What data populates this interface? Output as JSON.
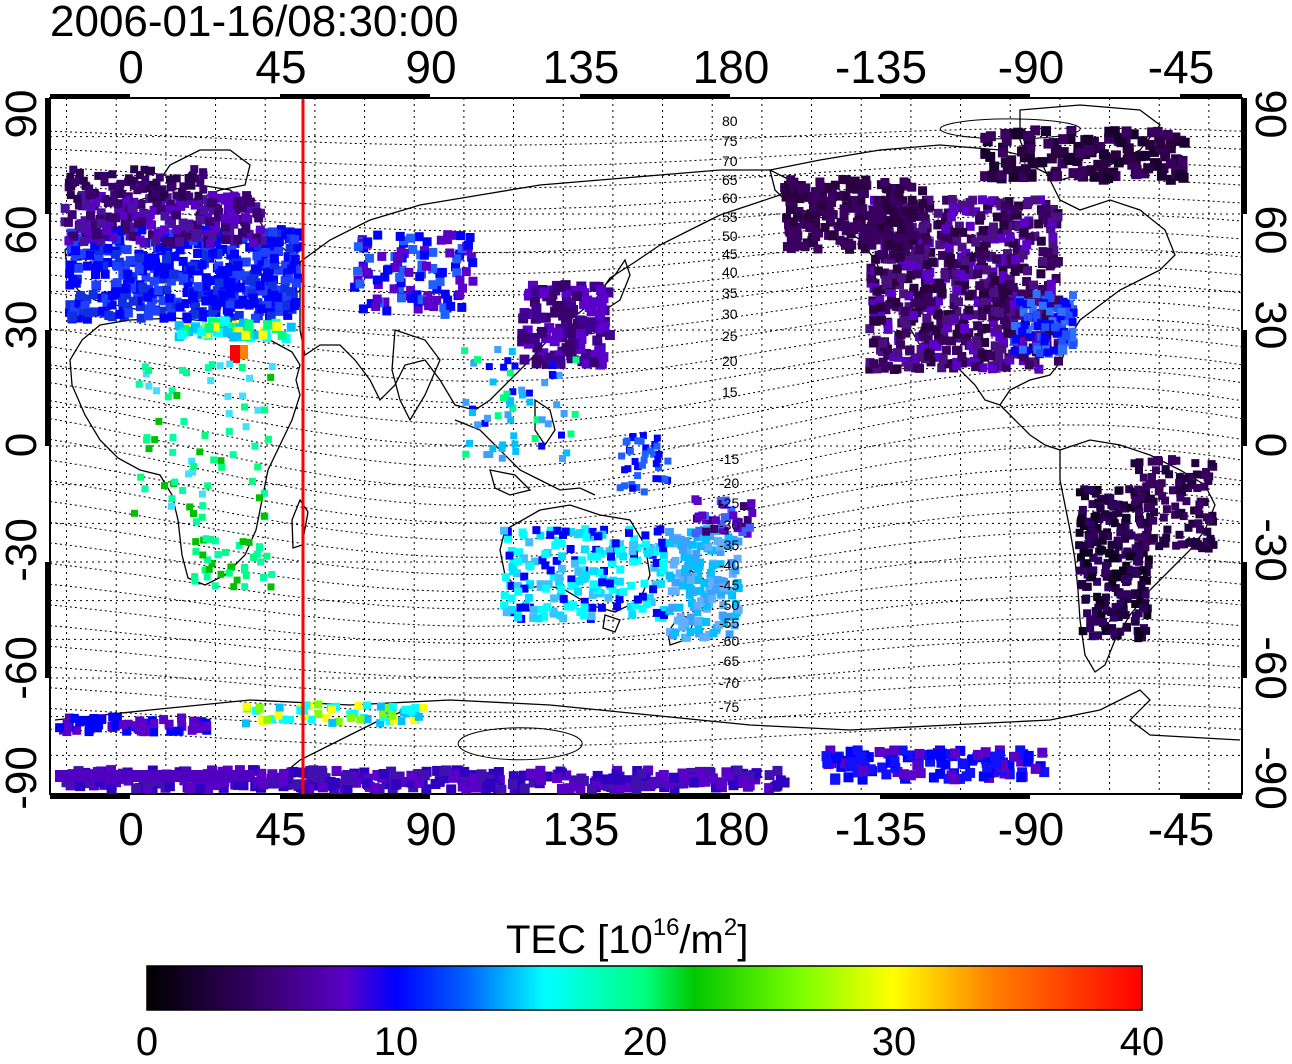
{
  "title": "2006-01-16/08:30:00",
  "x_ticks_top": [
    "0",
    "45",
    "90",
    "135",
    "180",
    "-135",
    "-90",
    "-45"
  ],
  "x_ticks_bottom": [
    "0",
    "45",
    "90",
    "135",
    "180",
    "-135",
    "-90",
    "-45"
  ],
  "y_ticks_left": [
    "90",
    "60",
    "30",
    "0",
    "-30",
    "-60",
    "-90"
  ],
  "y_ticks_right": [
    "90",
    "60",
    "30",
    "0",
    "-30",
    "-60",
    "-90"
  ],
  "contour_labels": [
    "80",
    "75",
    "70",
    "65",
    "60",
    "55",
    "50",
    "45",
    "40",
    "35",
    "30",
    "25",
    "20",
    "15",
    "-15",
    "-20",
    "-25",
    "-30",
    "-35",
    "-40",
    "-45",
    "-50",
    "-55",
    "-60",
    "-65",
    "-70",
    "-75"
  ],
  "colorbar": {
    "label_main": "TEC  [10",
    "label_exp1": "16",
    "label_mid": "/m",
    "label_exp2": "2",
    "label_end": "]",
    "ticks": [
      "0",
      "10",
      "20",
      "30",
      "40"
    ],
    "range": [
      0,
      40
    ],
    "colors": [
      "#000000",
      "#3a0070",
      "#5a00c8",
      "#0000ff",
      "#0080ff",
      "#00ffff",
      "#00ff80",
      "#00c000",
      "#80ff00",
      "#ffff00",
      "#ff8000",
      "#ff0000"
    ]
  },
  "marker_line": {
    "longitude": 57,
    "color": "#ff0000"
  },
  "map": {
    "lon_range": [
      -20,
      340
    ],
    "lat_range": [
      -90,
      90
    ],
    "projection": "cylindrical",
    "grid": "dotted"
  }
}
